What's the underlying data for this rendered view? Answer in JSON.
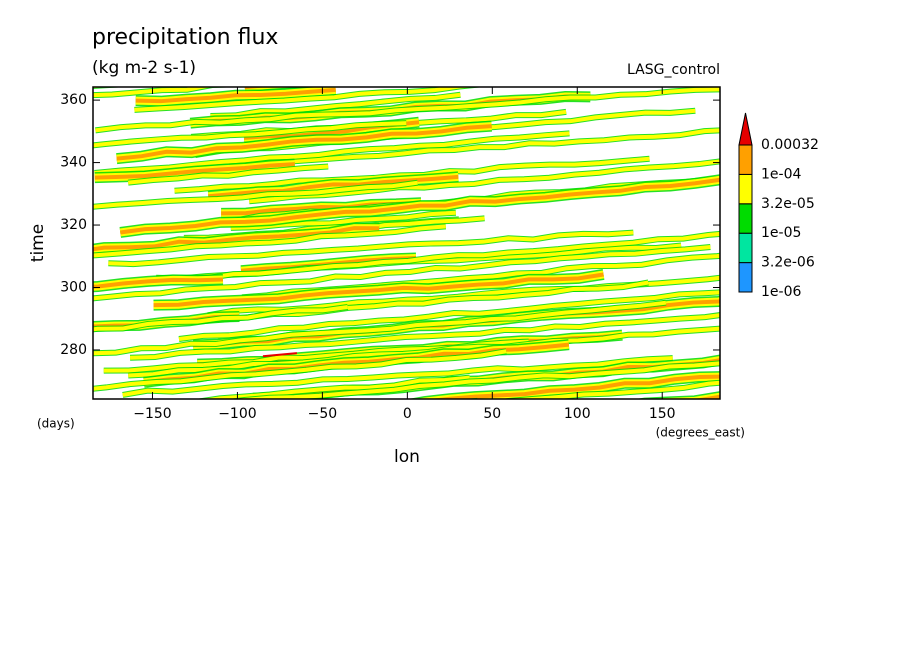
{
  "chart_data": {
    "type": "contour",
    "title": "precipitation flux",
    "subtitle": "(kg m-2 s-1)",
    "source": "LASG_control",
    "x_label": "lon",
    "x_units": "(degrees_east)",
    "y_label": "time",
    "y_units": "(days)",
    "xlim": [
      -185,
      184
    ],
    "ylim": [
      264.3,
      364.2
    ],
    "xticks": [
      {
        "value": -150,
        "label": "−150"
      },
      {
        "value": -100,
        "label": "−100"
      },
      {
        "value": -50,
        "label": "−50"
      },
      0,
      50,
      100,
      150
    ],
    "yticks": [
      280,
      300,
      320,
      340,
      360
    ],
    "colorbar": {
      "levels": [
        {
          "value": 1e-06,
          "label": "1e-06"
        },
        {
          "value": 3.2e-06,
          "label": "3.2e-06"
        },
        {
          "value": 1e-05,
          "label": "1e-05"
        },
        {
          "value": 3.2e-05,
          "label": "3.2e-05"
        },
        {
          "value": 0.0001,
          "label": "1e-04"
        },
        0.00032
      ],
      "colors": [
        "#1e96ff",
        "#00e6a0",
        "#00dc00",
        "#ffff00",
        "#ffa000"
      ],
      "extend_color": "#e60000"
    }
  }
}
